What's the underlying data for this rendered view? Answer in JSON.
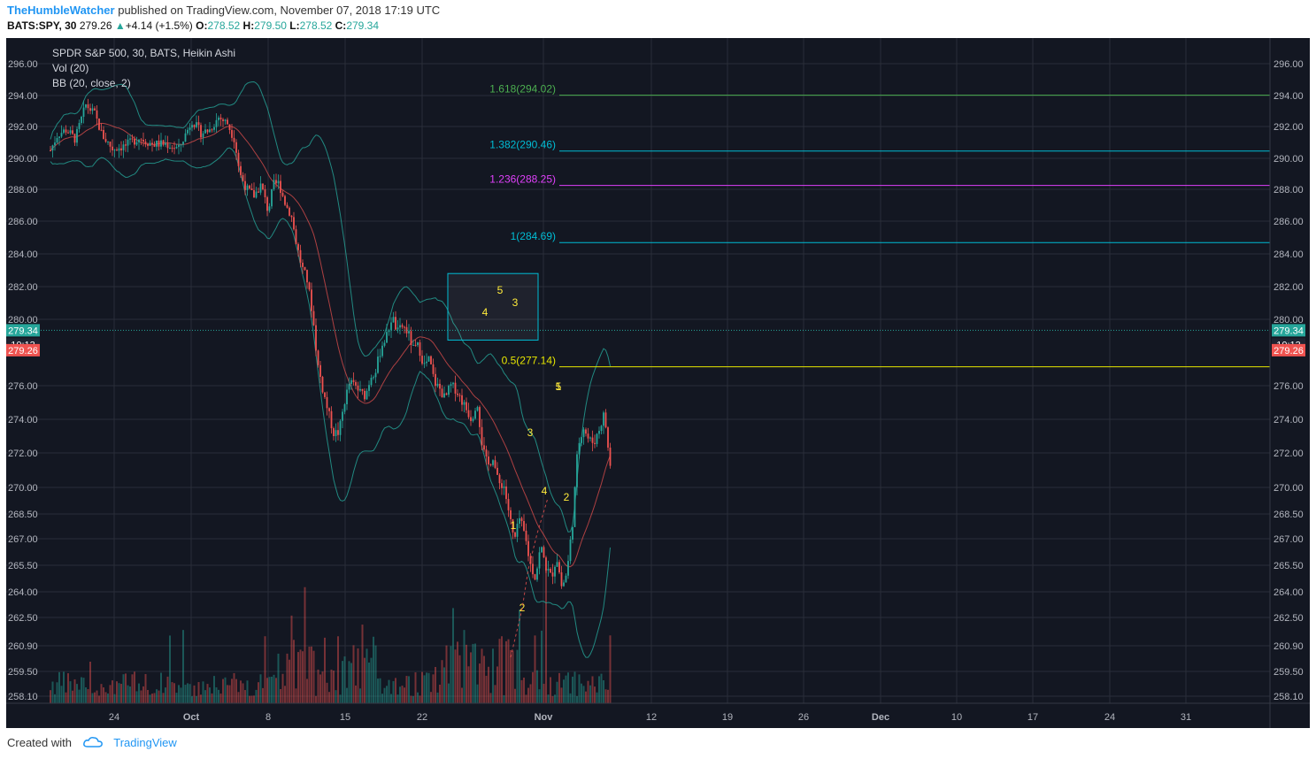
{
  "header": {
    "author": "TheHumbleWatcher",
    "published": "published on TradingView.com, November 07, 2018 17:19 UTC",
    "symbol": "BATS:SPY, 30",
    "price": "279.26",
    "change_arrow": "▲",
    "change": "+4.14 (+1.5%)",
    "o_label": "O:",
    "o_value": "278.52",
    "h_label": "H:",
    "h_value": "279.50",
    "l_label": "L:",
    "l_value": "278.52",
    "c_label": "C:",
    "c_value": "279.34"
  },
  "legend": {
    "title": "SPDR S&P 500, 30, BATS, Heikin Ashi",
    "vol": "Vol (20)",
    "bb": "BB (20, close, 2)"
  },
  "footer": {
    "created": "Created with",
    "brand": "TradingView"
  },
  "colors": {
    "background": "#131722",
    "grid": "#2a2e39",
    "axis_text": "#b2b5be",
    "up": "#26a69a",
    "down": "#ef5350",
    "bb_band": "#26a69a",
    "bb_mid": "#ef5350",
    "fib_1618": "#4caf50",
    "fib_1382": "#00bcd4",
    "fib_1236": "#e040fb",
    "fib_1": "#00bcd4",
    "fib_05": "#e6e600",
    "wave_label": "#ffeb3b",
    "box_border": "#00bcd4",
    "price_tag": "#26a69a",
    "prev_tag": "#ef5350"
  },
  "chart_data": {
    "type": "candlestick",
    "y_ticks": [
      "296.00",
      "294.00",
      "292.00",
      "290.00",
      "288.00",
      "286.00",
      "284.00",
      "282.00",
      "280.00",
      "276.00",
      "274.00",
      "272.00",
      "270.00",
      "268.50",
      "267.00",
      "265.50",
      "264.00",
      "262.50",
      "260.90",
      "259.50",
      "258.10"
    ],
    "x_ticks": [
      "24",
      "Oct",
      "8",
      "15",
      "22",
      "Nov",
      "12",
      "19",
      "26",
      "Dec",
      "10",
      "17",
      "24",
      "31"
    ],
    "price_tags": [
      {
        "label": "279.34",
        "value": 279.34,
        "color": "#26a69a"
      },
      {
        "label": "10:13",
        "value": 279.34,
        "color": "#26a69a",
        "role": "countdown"
      },
      {
        "label": "279.26",
        "value": 279.26,
        "color": "#ef5350"
      }
    ],
    "fib_levels": [
      {
        "label": "1.618(294.02)",
        "value": 294.02,
        "color": "#4caf50"
      },
      {
        "label": "1.382(290.46)",
        "value": 290.46,
        "color": "#00bcd4"
      },
      {
        "label": "1.236(288.25)",
        "value": 288.25,
        "color": "#e040fb"
      },
      {
        "label": "1(284.69)",
        "value": 284.69,
        "color": "#00bcd4"
      },
      {
        "label": "0.5(277.14)",
        "value": 277.14,
        "color": "#e6e600"
      }
    ],
    "wave_labels": [
      {
        "text": "1",
        "date_index": "Oct 29",
        "price": 267.2
      },
      {
        "text": "2",
        "date_index": "Oct 29",
        "price": 263.0
      },
      {
        "text": "3",
        "date_index": "Nov 1",
        "price": 273.3
      },
      {
        "text": "4",
        "date_index": "Nov 1",
        "price": 270.1
      },
      {
        "text": "5",
        "date_index": "Nov 2",
        "price": 275.8
      },
      {
        "text": "1",
        "date_index": "Nov 2",
        "price": 275.8
      },
      {
        "text": "2",
        "date_index": "Nov 2",
        "price": 269.6
      },
      {
        "text": "5",
        "date_index": "projection",
        "price": 281.5
      },
      {
        "text": "4",
        "date_index": "projection",
        "price": 280.1
      },
      {
        "text": "3",
        "date_index": "projection",
        "price": 280.8
      }
    ],
    "target_box": {
      "price_top": 282.8,
      "price_bottom": 278.75
    },
    "price_path": [
      [
        0,
        290.5
      ],
      [
        8,
        291.5
      ],
      [
        18,
        291.8
      ],
      [
        28,
        291.2
      ],
      [
        40,
        293.4
      ],
      [
        50,
        292.8
      ],
      [
        58,
        291.5
      ],
      [
        70,
        290.6
      ],
      [
        85,
        290.8
      ],
      [
        100,
        291.3
      ],
      [
        115,
        290.9
      ],
      [
        130,
        290.9
      ],
      [
        145,
        290.6
      ],
      [
        160,
        292.4
      ],
      [
        170,
        291.6
      ],
      [
        180,
        291.8
      ],
      [
        190,
        292.6
      ],
      [
        200,
        292.2
      ],
      [
        208,
        291.2
      ],
      [
        214,
        289.0
      ],
      [
        222,
        288.0
      ],
      [
        230,
        287.6
      ],
      [
        238,
        288.3
      ],
      [
        246,
        286.6
      ],
      [
        252,
        288.3
      ],
      [
        258,
        288.4
      ],
      [
        266,
        287.0
      ],
      [
        272,
        286.4
      ],
      [
        278,
        284.6
      ],
      [
        284,
        283.2
      ],
      [
        290,
        282.4
      ],
      [
        296,
        280.4
      ],
      [
        302,
        277.3
      ],
      [
        308,
        275.7
      ],
      [
        314,
        274.4
      ],
      [
        320,
        273.2
      ],
      [
        326,
        273.2
      ],
      [
        332,
        275.0
      ],
      [
        338,
        276.2
      ],
      [
        344,
        276.0
      ],
      [
        350,
        275.6
      ],
      [
        356,
        275.4
      ],
      [
        362,
        276.6
      ],
      [
        368,
        277.0
      ],
      [
        374,
        278.4
      ],
      [
        380,
        279.0
      ],
      [
        386,
        280.2
      ],
      [
        392,
        279.2
      ],
      [
        398,
        279.6
      ],
      [
        404,
        279.2
      ],
      [
        410,
        278.2
      ],
      [
        416,
        278.4
      ],
      [
        422,
        277.2
      ],
      [
        428,
        277.6
      ],
      [
        434,
        276.2
      ],
      [
        440,
        275.8
      ],
      [
        446,
        275.2
      ],
      [
        452,
        276.0
      ],
      [
        458,
        275.8
      ],
      [
        464,
        275.2
      ],
      [
        470,
        274.6
      ],
      [
        476,
        274.0
      ],
      [
        482,
        275.2
      ],
      [
        488,
        272.4
      ],
      [
        494,
        271.2
      ],
      [
        500,
        271.8
      ],
      [
        506,
        270.2
      ],
      [
        512,
        270.2
      ],
      [
        518,
        268.6
      ],
      [
        524,
        266.8
      ],
      [
        530,
        268.2
      ],
      [
        536,
        267.2
      ],
      [
        542,
        265.6
      ],
      [
        548,
        264.8
      ],
      [
        554,
        266.6
      ],
      [
        560,
        265.4
      ],
      [
        566,
        264.8
      ],
      [
        572,
        266.0
      ],
      [
        578,
        264.2
      ],
      [
        584,
        265.2
      ],
      [
        590,
        268.0
      ],
      [
        596,
        272.4
      ],
      [
        602,
        273.6
      ],
      [
        608,
        272.8
      ],
      [
        614,
        272.6
      ],
      [
        620,
        273.4
      ],
      [
        626,
        274.4
      ],
      [
        632,
        271.2
      ],
      [
        638,
        272.6
      ],
      [
        644,
        271.4
      ],
      [
        650,
        273.2
      ],
      [
        656,
        274.0
      ],
      [
        662,
        273.6
      ],
      [
        668,
        274.8
      ],
      [
        674,
        274.4
      ],
      [
        680,
        276.2
      ],
      [
        684,
        279.4
      ]
    ]
  }
}
